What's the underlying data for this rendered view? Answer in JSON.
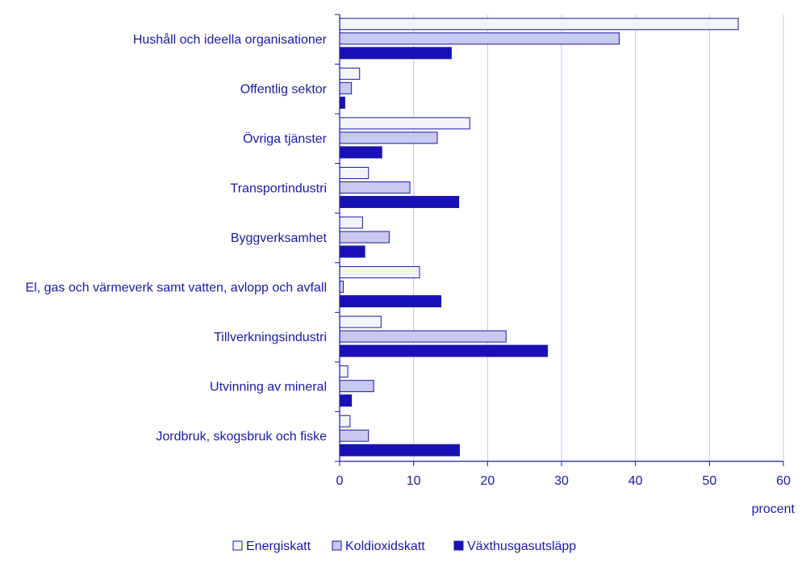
{
  "chart_data": {
    "type": "bar",
    "orientation": "horizontal",
    "categories": [
      "Hushåll och ideella organisationer",
      "Offentlig sektor",
      "Övriga tjänster",
      "Transportindustri",
      "Byggverksamhet",
      "El, gas och värmeverk samt vatten, avlopp och avfall",
      "Tillverkningsindustri",
      "Utvinning av mineral",
      "Jordbruk, skogsbruk och fiske"
    ],
    "series": [
      {
        "name": "Energiskatt",
        "color": "#f4f4fb",
        "values": [
          53.9,
          2.7,
          17.6,
          3.9,
          3.1,
          10.8,
          5.6,
          1.1,
          1.4
        ]
      },
      {
        "name": "Koldioxidskatt",
        "color": "#c9c9ef",
        "values": [
          37.8,
          1.6,
          13.2,
          9.5,
          6.7,
          0.5,
          22.5,
          4.6,
          3.9
        ]
      },
      {
        "name": "Växthusgasutsläpp",
        "color": "#1a10b8",
        "values": [
          15.1,
          0.7,
          5.7,
          16.1,
          3.4,
          13.7,
          28.1,
          1.6,
          16.2
        ]
      }
    ],
    "xlim": [
      0,
      60
    ],
    "xticks": [
      "0",
      "10",
      "20",
      "30",
      "40",
      "50",
      "60"
    ],
    "xlabel": "procent",
    "grid": true,
    "legend_position": "bottom"
  }
}
